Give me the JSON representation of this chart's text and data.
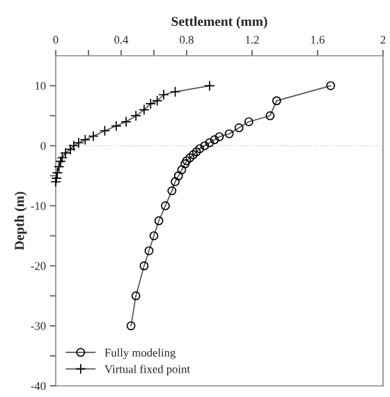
{
  "chart_data": {
    "type": "line",
    "xlabel": "Settlement (mm)",
    "ylabel": "Depth (m)",
    "xlim": [
      0,
      2
    ],
    "ylim": [
      -40,
      15
    ],
    "xticks": [
      0,
      {
        "value": 0.2,
        "label": null
      },
      0.4,
      {
        "value": 0.6,
        "label": null
      },
      0.8,
      1.2,
      1.6,
      2
    ],
    "yticks": [
      10,
      {
        "value": 5,
        "label": null
      },
      0,
      {
        "value": -5,
        "label": null
      },
      -10,
      {
        "value": -15,
        "label": null
      },
      -20,
      {
        "value": -25,
        "label": null
      },
      -30,
      {
        "value": -35,
        "label": null
      },
      -40
    ],
    "ref_lines": [
      {
        "axis": "y",
        "value": 0,
        "color": "#cccccc",
        "line_style": "dotted"
      }
    ],
    "legend": "bottom left",
    "series": [
      {
        "name": "Fully modeling",
        "color": "#000000",
        "marker": "circle",
        "x": [
          1.68,
          1.35,
          1.31,
          1.18,
          1.12,
          1.06,
          1.0,
          0.97,
          0.94,
          0.91,
          0.88,
          0.86,
          0.84,
          0.82,
          0.8,
          0.79,
          0.77,
          0.75,
          0.73,
          0.71,
          0.67,
          0.63,
          0.6,
          0.57,
          0.54,
          0.49,
          0.46
        ],
        "values": [
          10,
          7.5,
          5,
          4,
          3,
          2,
          1.5,
          1,
          0.5,
          0,
          -0.5,
          -1,
          -1.5,
          -2,
          -2.5,
          -3,
          -4,
          -5,
          -6,
          -7.5,
          -10,
          -12.5,
          -15,
          -17.5,
          -20,
          -25,
          -30
        ]
      },
      {
        "name": "Virtual fixed point",
        "color": "#000000",
        "marker": "cross",
        "x": [
          0.94,
          0.73,
          0.66,
          0.62,
          0.58,
          0.54,
          0.49,
          0.43,
          0.37,
          0.3,
          0.23,
          0.18,
          0.14,
          0.11,
          0.09,
          0.06,
          0.04,
          0.03,
          0.02,
          0.01,
          0.005,
          0
        ],
        "values": [
          10,
          9,
          8.5,
          7.5,
          7,
          6,
          5,
          4,
          3.3,
          2.5,
          1.6,
          1,
          0.5,
          0,
          -0.6,
          -1.2,
          -2,
          -2.6,
          -3.5,
          -4.5,
          -5.4,
          -6
        ]
      }
    ]
  }
}
